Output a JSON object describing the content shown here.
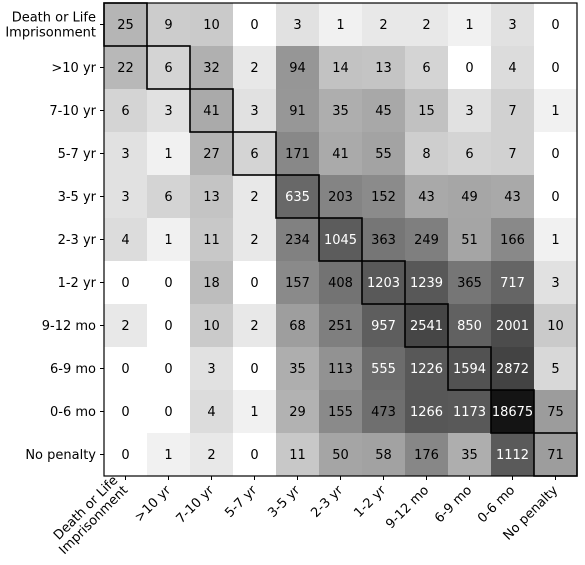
{
  "chart_data": {
    "type": "heatmap",
    "title": "",
    "xlabel": "",
    "ylabel": "",
    "row_labels": [
      [
        "Death or Life",
        "Imprisonment"
      ],
      [
        ">10 yr"
      ],
      [
        "7-10 yr"
      ],
      [
        "5-7 yr"
      ],
      [
        "3-5 yr"
      ],
      [
        "2-3 yr"
      ],
      [
        "1-2 yr"
      ],
      [
        "9-12 mo"
      ],
      [
        "6-9 mo"
      ],
      [
        "0-6 mo"
      ],
      [
        "No penalty"
      ]
    ],
    "col_labels": [
      [
        "Death or Life",
        "Imprisonment"
      ],
      [
        ">10 yr"
      ],
      [
        "7-10 yr"
      ],
      [
        "5-7 yr"
      ],
      [
        "3-5 yr"
      ],
      [
        "2-3 yr"
      ],
      [
        "1-2 yr"
      ],
      [
        "9-12 mo"
      ],
      [
        "6-9 mo"
      ],
      [
        "0-6 mo"
      ],
      [
        "No penalty"
      ]
    ],
    "values": [
      [
        25,
        9,
        10,
        0,
        3,
        1,
        2,
        2,
        1,
        3,
        0
      ],
      [
        22,
        6,
        32,
        2,
        94,
        14,
        13,
        6,
        0,
        4,
        0
      ],
      [
        6,
        3,
        41,
        3,
        91,
        35,
        45,
        15,
        3,
        7,
        1
      ],
      [
        3,
        1,
        27,
        6,
        171,
        41,
        55,
        8,
        6,
        7,
        0
      ],
      [
        3,
        6,
        13,
        2,
        635,
        203,
        152,
        43,
        49,
        43,
        0
      ],
      [
        4,
        1,
        11,
        2,
        234,
        1045,
        363,
        249,
        51,
        166,
        1
      ],
      [
        0,
        0,
        18,
        0,
        157,
        408,
        1203,
        1239,
        365,
        717,
        3
      ],
      [
        2,
        0,
        10,
        2,
        68,
        251,
        957,
        2541,
        850,
        2001,
        10
      ],
      [
        0,
        0,
        3,
        0,
        35,
        113,
        555,
        1226,
        1594,
        2872,
        5
      ],
      [
        0,
        0,
        4,
        1,
        29,
        155,
        473,
        1266,
        1173,
        18675,
        75
      ],
      [
        0,
        1,
        2,
        0,
        11,
        50,
        58,
        176,
        35,
        1112,
        71
      ]
    ],
    "color_scale": "log",
    "colormap": "greys",
    "diagonal_highlighted": true,
    "grid": false,
    "legend": "none"
  }
}
